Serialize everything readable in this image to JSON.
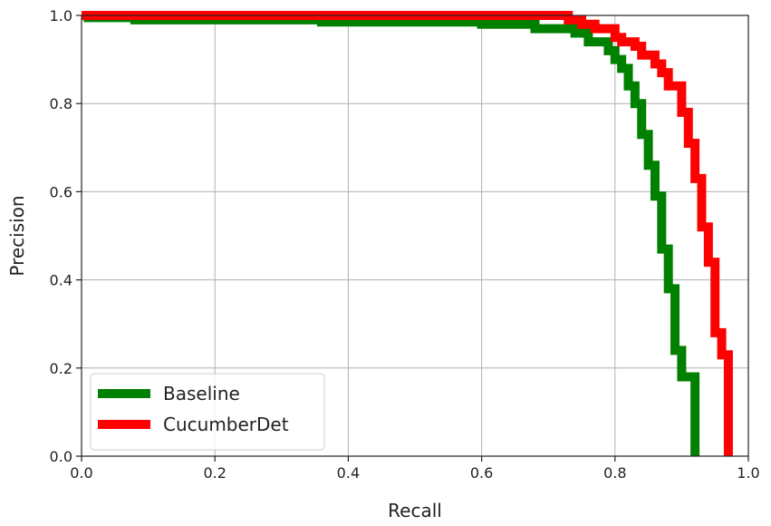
{
  "chart_data": {
    "type": "line",
    "title": "",
    "xlabel": "Recall",
    "ylabel": "Precision",
    "xlim": [
      0.0,
      1.0
    ],
    "ylim": [
      0.0,
      1.0
    ],
    "xticks": [
      0.0,
      0.2,
      0.4,
      0.6,
      0.8,
      1.0
    ],
    "yticks": [
      0.0,
      0.2,
      0.4,
      0.6,
      0.8,
      1.0
    ],
    "xtick_labels": [
      "0.0",
      "0.2",
      "0.4",
      "0.6",
      "0.8",
      "1.0"
    ],
    "ytick_labels": [
      "0.0",
      "0.2",
      "0.4",
      "0.6",
      "0.8",
      "1.0"
    ],
    "grid": true,
    "legend_position": "lower-left",
    "series": [
      {
        "name": "Baseline",
        "color": "#008000",
        "x": [
          0.0,
          0.01,
          0.01,
          0.08,
          0.08,
          0.36,
          0.36,
          0.6,
          0.6,
          0.68,
          0.68,
          0.74,
          0.74,
          0.76,
          0.76,
          0.79,
          0.79,
          0.8,
          0.8,
          0.81,
          0.81,
          0.82,
          0.82,
          0.83,
          0.83,
          0.84,
          0.84,
          0.85,
          0.85,
          0.86,
          0.86,
          0.87,
          0.87,
          0.88,
          0.88,
          0.89,
          0.89,
          0.9,
          0.9,
          0.91,
          0.91,
          0.92,
          0.92
        ],
        "y": [
          1.0,
          1.0,
          0.995,
          0.995,
          0.99,
          0.99,
          0.985,
          0.985,
          0.98,
          0.98,
          0.97,
          0.97,
          0.96,
          0.96,
          0.94,
          0.94,
          0.92,
          0.92,
          0.9,
          0.9,
          0.88,
          0.88,
          0.84,
          0.84,
          0.8,
          0.8,
          0.73,
          0.73,
          0.66,
          0.66,
          0.59,
          0.59,
          0.47,
          0.47,
          0.38,
          0.38,
          0.24,
          0.24,
          0.18,
          0.18,
          0.18,
          0.18,
          0.0
        ]
      },
      {
        "name": "CucumberDet",
        "color": "#ff0000",
        "x": [
          0.0,
          0.73,
          0.73,
          0.75,
          0.75,
          0.77,
          0.77,
          0.8,
          0.8,
          0.81,
          0.81,
          0.83,
          0.83,
          0.84,
          0.84,
          0.86,
          0.86,
          0.87,
          0.87,
          0.88,
          0.88,
          0.9,
          0.9,
          0.91,
          0.91,
          0.92,
          0.92,
          0.93,
          0.93,
          0.94,
          0.94,
          0.95,
          0.95,
          0.96,
          0.96,
          0.97,
          0.97
        ],
        "y": [
          1.0,
          1.0,
          0.99,
          0.99,
          0.98,
          0.98,
          0.97,
          0.97,
          0.95,
          0.95,
          0.94,
          0.94,
          0.93,
          0.93,
          0.91,
          0.91,
          0.89,
          0.89,
          0.87,
          0.87,
          0.84,
          0.84,
          0.78,
          0.78,
          0.71,
          0.71,
          0.63,
          0.63,
          0.52,
          0.52,
          0.44,
          0.44,
          0.28,
          0.28,
          0.23,
          0.23,
          0.0
        ]
      }
    ]
  }
}
